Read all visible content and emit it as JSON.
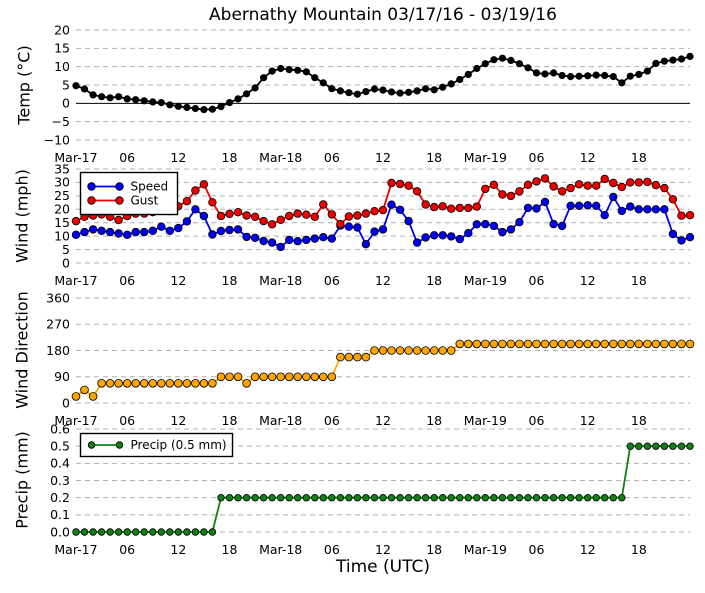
{
  "title": "Abernathy Mountain 03/17/16 - 03/19/16",
  "xlabel": "Time (UTC)",
  "x_axis": {
    "start_label": "Mar-17",
    "interval_hours": 1,
    "range_hours": [
      0,
      72
    ],
    "tick_hours": [
      0,
      6,
      12,
      18,
      24,
      30,
      36,
      42,
      48,
      54,
      60,
      66
    ],
    "tick_labels": [
      "Mar-17",
      "06",
      "12",
      "18",
      "Mar-18",
      "06",
      "12",
      "18",
      "Mar-19",
      "06",
      "12",
      "18"
    ]
  },
  "colors": {
    "background": "#ffffff",
    "grid": "#b0b0b0",
    "text": "#000000",
    "temp": "#000000",
    "speed": "#0000ee",
    "gust": "#ee0000",
    "wind_direction": "#ffa500",
    "precip": "#128012",
    "marker_edge": "#000000",
    "legend_border": "#000000"
  },
  "chart_data": [
    {
      "type": "line",
      "name": "temperature",
      "ylabel": "Temp (°C)",
      "ylim": [
        -10,
        20
      ],
      "yticks": [
        20,
        15,
        10,
        5,
        0,
        -5,
        -10
      ],
      "ytick_labels": [
        "20",
        "15",
        "10",
        "5",
        "0",
        "−5",
        "−10"
      ],
      "zero_line": true,
      "series": [
        {
          "name": "Temp",
          "color": "#000000",
          "marker": "o",
          "values": [
            4.8,
            3.9,
            2.3,
            1.8,
            1.5,
            1.8,
            1.2,
            1.0,
            0.7,
            0.4,
            0.2,
            -0.4,
            -0.8,
            -1.1,
            -1.4,
            -1.7,
            -1.6,
            -0.9,
            0.2,
            1.2,
            2.6,
            4.2,
            7.0,
            8.8,
            9.5,
            9.2,
            9.0,
            8.6,
            7.0,
            5.6,
            4.0,
            3.4,
            2.9,
            2.5,
            3.2,
            3.9,
            3.6,
            3.1,
            2.8,
            3.0,
            3.4,
            4.0,
            3.7,
            4.4,
            5.3,
            6.5,
            7.9,
            9.5,
            10.8,
            11.9,
            12.3,
            11.7,
            10.8,
            9.7,
            8.3,
            8.0,
            8.3,
            7.6,
            7.3,
            7.4,
            7.5,
            7.7,
            7.6,
            7.3,
            5.6,
            7.4,
            7.9,
            8.8,
            10.9,
            11.5,
            11.8,
            12.1,
            12.8
          ]
        }
      ]
    },
    {
      "type": "line",
      "name": "wind",
      "ylabel": "Wind (mph)",
      "ylim": [
        0,
        35
      ],
      "yticks": [
        35,
        30,
        25,
        20,
        15,
        10,
        5,
        0
      ],
      "ytick_labels": [
        "35",
        "30",
        "25",
        "20",
        "15",
        "10",
        "5",
        "0"
      ],
      "legend": {
        "position": "upper left",
        "entries": [
          "Speed",
          "Gust"
        ]
      },
      "series": [
        {
          "name": "Speed",
          "color": "#0000ee",
          "marker": "o",
          "values": [
            10.5,
            11.5,
            12.5,
            12.0,
            11.5,
            11.0,
            10.5,
            11.5,
            11.5,
            12.0,
            13.5,
            12.0,
            13.0,
            15.5,
            20.0,
            17.5,
            10.6,
            11.9,
            12.3,
            12.5,
            9.7,
            9.4,
            8.2,
            7.6,
            6.0,
            8.6,
            8.1,
            8.6,
            9.1,
            9.6,
            9.1,
            13.9,
            13.5,
            13.2,
            7.0,
            11.7,
            12.5,
            21.7,
            19.8,
            15.6,
            7.6,
            9.5,
            10.3,
            10.3,
            9.9,
            8.9,
            11.1,
            14.4,
            14.5,
            13.8,
            11.5,
            12.5,
            15.2,
            20.5,
            20.3,
            22.7,
            14.5,
            13.8,
            21.3,
            21.3,
            21.5,
            21.3,
            17.8,
            24.6,
            19.4,
            21.0,
            20.0,
            20.0,
            20.0,
            20.0,
            10.8,
            8.4,
            9.6
          ]
        },
        {
          "name": "Gust",
          "color": "#ee0000",
          "marker": "o",
          "values": [
            15.6,
            17.2,
            17.7,
            18.1,
            17.2,
            16.0,
            17.5,
            18.4,
            18.4,
            18.9,
            20.1,
            19.3,
            21.1,
            23.0,
            27.0,
            29.3,
            22.6,
            17.5,
            18.3,
            18.9,
            17.7,
            17.2,
            15.6,
            14.4,
            16.1,
            17.5,
            18.4,
            18.0,
            17.2,
            21.8,
            18.1,
            14.5,
            17.3,
            17.7,
            18.4,
            19.3,
            19.7,
            29.8,
            29.4,
            28.8,
            26.7,
            21.8,
            20.8,
            21.1,
            20.2,
            20.5,
            20.5,
            21.0,
            27.6,
            29.1,
            25.5,
            25.0,
            26.7,
            29.1,
            30.4,
            31.5,
            28.5,
            26.7,
            27.9,
            29.3,
            28.8,
            28.8,
            31.3,
            29.8,
            28.3,
            30.0,
            30.0,
            30.2,
            29.0,
            27.9,
            23.7,
            17.6,
            17.8
          ]
        }
      ]
    },
    {
      "type": "line",
      "name": "wind-direction",
      "ylabel": "Wind Direction",
      "ylim": [
        0,
        360
      ],
      "yticks": [
        360,
        270,
        180,
        90,
        0
      ],
      "ytick_labels": [
        "360",
        "270",
        "180",
        "90",
        "0"
      ],
      "series": [
        {
          "name": "Wind Direction",
          "color": "#ffa500",
          "marker": "o",
          "values": [
            22.5,
            45,
            22.5,
            67.5,
            67.5,
            67.5,
            67.5,
            67.5,
            67.5,
            67.5,
            67.5,
            67.5,
            67.5,
            67.5,
            67.5,
            67.5,
            67.5,
            90,
            90,
            90,
            67.5,
            90,
            90,
            90,
            90,
            90,
            90,
            90,
            90,
            90,
            90,
            157.5,
            157.5,
            157.5,
            157.5,
            180,
            180,
            180,
            180,
            180,
            180,
            180,
            180,
            180,
            180,
            202.5,
            202.5,
            202.5,
            202.5,
            202.5,
            202.5,
            202.5,
            202.5,
            202.5,
            202.5,
            202.5,
            202.5,
            202.5,
            202.5,
            202.5,
            202.5,
            202.5,
            202.5,
            202.5,
            202.5,
            202.5,
            202.5,
            202.5,
            202.5,
            202.5,
            202.5,
            202.5,
            202.5
          ]
        }
      ]
    },
    {
      "type": "line",
      "name": "precipitation",
      "ylabel": "Precip (mm)",
      "ylim": [
        0,
        0.6
      ],
      "yticks": [
        0.6,
        0.5,
        0.4,
        0.3,
        0.2,
        0.1,
        0.0
      ],
      "ytick_labels": [
        "0.6",
        "0.5",
        "0.4",
        "0.3",
        "0.2",
        "0.1",
        "0.0"
      ],
      "legend": {
        "position": "upper left",
        "entries": [
          "Precip (0.5 mm)"
        ]
      },
      "series": [
        {
          "name": "Precip (0.5 mm)",
          "color": "#128012",
          "marker": "o",
          "values": [
            0.0,
            0.0,
            0.0,
            0.0,
            0.0,
            0.0,
            0.0,
            0.0,
            0.0,
            0.0,
            0.0,
            0.0,
            0.0,
            0.0,
            0.0,
            0.0,
            0.0,
            0.2,
            0.2,
            0.2,
            0.2,
            0.2,
            0.2,
            0.2,
            0.2,
            0.2,
            0.2,
            0.2,
            0.2,
            0.2,
            0.2,
            0.2,
            0.2,
            0.2,
            0.2,
            0.2,
            0.2,
            0.2,
            0.2,
            0.2,
            0.2,
            0.2,
            0.2,
            0.2,
            0.2,
            0.2,
            0.2,
            0.2,
            0.2,
            0.2,
            0.2,
            0.2,
            0.2,
            0.2,
            0.2,
            0.2,
            0.2,
            0.2,
            0.2,
            0.2,
            0.2,
            0.2,
            0.2,
            0.2,
            0.2,
            0.5,
            0.5,
            0.5,
            0.5,
            0.5,
            0.5,
            0.5,
            0.5
          ]
        }
      ]
    }
  ]
}
